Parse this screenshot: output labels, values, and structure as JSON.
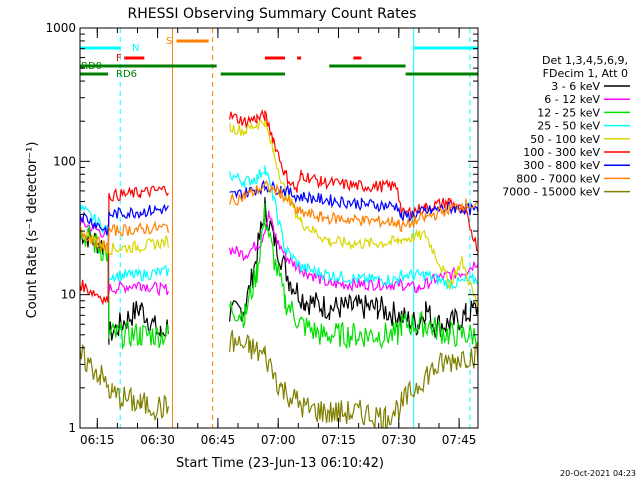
{
  "chart_data": {
    "type": "line",
    "title": "RHESSI Observing Summary Count Rates",
    "xlabel": "Start Time (23-Jun-13 06:10:42)",
    "ylabel": "Count Rate (s⁻¹ detector⁻¹)",
    "y_scale": "log",
    "ylim": [
      1,
      1000
    ],
    "xlim_minutes": [
      0,
      99
    ],
    "y_ticks": [
      {
        "value": 1,
        "label": "1"
      },
      {
        "value": 10,
        "label": "10"
      },
      {
        "value": 100,
        "label": "100"
      },
      {
        "value": 1000,
        "label": "1000"
      }
    ],
    "x_ticks": [
      {
        "minute": 4.3,
        "label": "06:15"
      },
      {
        "minute": 19.3,
        "label": "06:30"
      },
      {
        "minute": 34.3,
        "label": "06:45"
      },
      {
        "minute": 49.3,
        "label": "07:00"
      },
      {
        "minute": 64.3,
        "label": "07:15"
      },
      {
        "minute": 79.3,
        "label": "07:30"
      },
      {
        "minute": 94.3,
        "label": "07:45"
      }
    ],
    "legend_header": [
      "Det 1,3,4,5,6,9,",
      "FDecim 1, Att 0"
    ],
    "legend_position": "right",
    "timestamp": "20-Oct-2021 04:23",
    "flag_labels": {
      "night": "N",
      "flare": "F",
      "saa": "S",
      "rd0": "RD0",
      "rd6": "RD6"
    },
    "series": [
      {
        "name": "3 - 6 keV",
        "color": "#000000",
        "points": [
          [
            0,
            30
          ],
          [
            7,
            22
          ],
          [
            7.2,
            5
          ],
          [
            15,
            8
          ],
          [
            20,
            5
          ],
          [
            22,
            6
          ],
          [
            22.5,
            null
          ],
          [
            37,
            null
          ],
          [
            37.2,
            7
          ],
          [
            41,
            8
          ],
          [
            43,
            14
          ],
          [
            45,
            30
          ],
          [
            46,
            45
          ],
          [
            48,
            28
          ],
          [
            52,
            13
          ],
          [
            56,
            9
          ],
          [
            62,
            8
          ],
          [
            68,
            8
          ],
          [
            74,
            8
          ],
          [
            79,
            7
          ],
          [
            84,
            6
          ],
          [
            86,
            8
          ],
          [
            88,
            6
          ],
          [
            92,
            6
          ],
          [
            96,
            7
          ],
          [
            99,
            8
          ]
        ]
      },
      {
        "name": "6 - 12 keV",
        "color": "#ff00ff",
        "points": [
          [
            0,
            35
          ],
          [
            7,
            28
          ],
          [
            7.2,
            11
          ],
          [
            15,
            12
          ],
          [
            20,
            11
          ],
          [
            22,
            11
          ],
          [
            22.5,
            null
          ],
          [
            37,
            null
          ],
          [
            37.2,
            22
          ],
          [
            41,
            20
          ],
          [
            45,
            25
          ],
          [
            47,
            40
          ],
          [
            49,
            25
          ],
          [
            52,
            18
          ],
          [
            56,
            15
          ],
          [
            62,
            12
          ],
          [
            70,
            12
          ],
          [
            79,
            12
          ],
          [
            80,
            12
          ],
          [
            84,
            11
          ],
          [
            88,
            13
          ],
          [
            92,
            14
          ],
          [
            96,
            15
          ],
          [
            99,
            18
          ]
        ]
      },
      {
        "name": "12 - 25 keV",
        "color": "#00e000",
        "points": [
          [
            0,
            30
          ],
          [
            7,
            20
          ],
          [
            7.2,
            5
          ],
          [
            15,
            5
          ],
          [
            22,
            5
          ],
          [
            22.5,
            null
          ],
          [
            37,
            null
          ],
          [
            37.2,
            8
          ],
          [
            41,
            7
          ],
          [
            44,
            15
          ],
          [
            46,
            40
          ],
          [
            48,
            20
          ],
          [
            51,
            9
          ],
          [
            55,
            6
          ],
          [
            60,
            5
          ],
          [
            70,
            5
          ],
          [
            79,
            5
          ],
          [
            80,
            6
          ],
          [
            86,
            6
          ],
          [
            92,
            5
          ],
          [
            99,
            5
          ]
        ]
      },
      {
        "name": "25 - 50 keV",
        "color": "#00ffff",
        "points": [
          [
            0,
            45
          ],
          [
            7,
            30
          ],
          [
            7.2,
            14
          ],
          [
            15,
            14
          ],
          [
            22,
            15
          ],
          [
            22.5,
            null
          ],
          [
            37,
            null
          ],
          [
            37.2,
            80
          ],
          [
            41,
            70
          ],
          [
            44,
            75
          ],
          [
            46,
            90
          ],
          [
            48,
            55
          ],
          [
            51,
            22
          ],
          [
            55,
            16
          ],
          [
            62,
            14
          ],
          [
            70,
            13
          ],
          [
            79,
            13
          ],
          [
            80,
            14
          ],
          [
            86,
            14
          ],
          [
            92,
            12
          ],
          [
            99,
            13
          ]
        ]
      },
      {
        "name": "50 - 100 keV",
        "color": "#d8d800",
        "points": [
          [
            0,
            30
          ],
          [
            7,
            22
          ],
          [
            7.2,
            22
          ],
          [
            15,
            23
          ],
          [
            22,
            25
          ],
          [
            22.5,
            null
          ],
          [
            37,
            null
          ],
          [
            37.2,
            180
          ],
          [
            41,
            170
          ],
          [
            44,
            190
          ],
          [
            46,
            200
          ],
          [
            48,
            120
          ],
          [
            51,
            60
          ],
          [
            55,
            35
          ],
          [
            62,
            25
          ],
          [
            70,
            24
          ],
          [
            79,
            25
          ],
          [
            80,
            26
          ],
          [
            86,
            28
          ],
          [
            92,
            12
          ],
          [
            95,
            18
          ],
          [
            99,
            8
          ]
        ]
      },
      {
        "name": "100 - 300 keV",
        "color": "#ff0000",
        "points": [
          [
            0,
            12
          ],
          [
            7,
            9
          ],
          [
            7.2,
            55
          ],
          [
            15,
            58
          ],
          [
            22,
            62
          ],
          [
            22.5,
            null
          ],
          [
            37,
            null
          ],
          [
            37.2,
            220
          ],
          [
            41,
            200
          ],
          [
            44,
            210
          ],
          [
            46,
            220
          ],
          [
            48,
            150
          ],
          [
            51,
            80
          ],
          [
            54,
            60
          ],
          [
            55,
            80
          ],
          [
            60,
            70
          ],
          [
            70,
            65
          ],
          [
            79,
            65
          ],
          [
            80,
            40
          ],
          [
            86,
            45
          ],
          [
            92,
            50
          ],
          [
            96,
            40
          ],
          [
            99,
            22
          ]
        ]
      },
      {
        "name": "300 - 800 keV",
        "color": "#0000ff",
        "points": [
          [
            0,
            40
          ],
          [
            7,
            30
          ],
          [
            7.2,
            40
          ],
          [
            15,
            42
          ],
          [
            22,
            44
          ],
          [
            22.5,
            null
          ],
          [
            37,
            null
          ],
          [
            37.2,
            55
          ],
          [
            41,
            58
          ],
          [
            46,
            65
          ],
          [
            50,
            62
          ],
          [
            54,
            55
          ],
          [
            60,
            52
          ],
          [
            70,
            48
          ],
          [
            79,
            46
          ],
          [
            80,
            38
          ],
          [
            86,
            42
          ],
          [
            92,
            45
          ],
          [
            96,
            44
          ],
          [
            99,
            42
          ]
        ]
      },
      {
        "name": "800 - 7000 keV",
        "color": "#ff8000",
        "points": [
          [
            0,
            30
          ],
          [
            7,
            22
          ],
          [
            7.2,
            30
          ],
          [
            15,
            31
          ],
          [
            22,
            32
          ],
          [
            22.5,
            null
          ],
          [
            37,
            null
          ],
          [
            37.2,
            50
          ],
          [
            41,
            55
          ],
          [
            46,
            65
          ],
          [
            50,
            58
          ],
          [
            54,
            42
          ],
          [
            60,
            38
          ],
          [
            70,
            36
          ],
          [
            79,
            35
          ],
          [
            80,
            32
          ],
          [
            86,
            38
          ],
          [
            92,
            44
          ],
          [
            96,
            48
          ],
          [
            99,
            45
          ]
        ]
      },
      {
        "name": "7000 - 15000 keV",
        "color": "#808000",
        "points": [
          [
            0,
            3.5
          ],
          [
            5,
            2.5
          ],
          [
            8,
            1.8
          ],
          [
            15,
            1.5
          ],
          [
            22,
            1.4
          ],
          [
            22.5,
            null
          ],
          [
            37,
            null
          ],
          [
            37.2,
            4.5
          ],
          [
            42,
            4
          ],
          [
            46,
            3.5
          ],
          [
            50,
            2
          ],
          [
            56,
            1.4
          ],
          [
            62,
            1.3
          ],
          [
            70,
            1.3
          ],
          [
            76,
            1.2
          ],
          [
            80,
            1.5
          ],
          [
            86,
            2.5
          ],
          [
            90,
            3
          ],
          [
            96,
            3.5
          ],
          [
            99,
            3.5
          ]
        ]
      }
    ],
    "attenuator_bars": [
      {
        "name": "N",
        "color": "#00ffff",
        "spans": [
          [
            0,
            10
          ],
          [
            83,
            99
          ]
        ]
      },
      {
        "name": "F",
        "color": "#ff0000",
        "spans": [
          [
            11,
            16
          ],
          [
            46,
            51
          ],
          [
            54,
            55
          ],
          [
            68,
            70
          ]
        ]
      },
      {
        "name": "S",
        "color": "#ff8000",
        "spans": [
          [
            24,
            32
          ]
        ]
      },
      {
        "name": "RD0",
        "color": "#008000",
        "spans": [
          [
            0,
            34
          ],
          [
            62,
            81
          ]
        ]
      },
      {
        "name": "RD6",
        "color": "#008000",
        "spans": [
          [
            0,
            7
          ],
          [
            35,
            51
          ],
          [
            81,
            99
          ]
        ]
      }
    ],
    "vertical_markers": [
      {
        "minute": 10,
        "color": "#00ffff",
        "style": "dashed"
      },
      {
        "minute": 23,
        "color": "#ff8000",
        "style": "solid"
      },
      {
        "minute": 33,
        "color": "#ff8000",
        "style": "dashed"
      },
      {
        "minute": 83,
        "color": "#00ffff",
        "style": "solid"
      },
      {
        "minute": 97,
        "color": "#00ffff",
        "style": "dashed"
      }
    ]
  }
}
